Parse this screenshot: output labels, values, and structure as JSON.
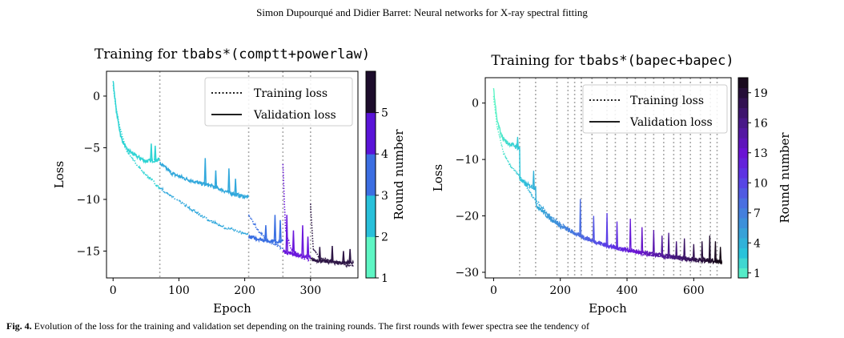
{
  "page_header": "Simon Dupourqué  and Didier Barret: Neural networks for X-ray spectral fitting",
  "caption": {
    "label": "Fig. 4.",
    "text": "Evolution of the loss for the training and validation set depending on the training rounds. The first rounds with fewer spectra see the tendency of"
  },
  "colormap": [
    "#5ef6c4",
    "#2ac3da",
    "#3a98d8",
    "#4a6fe0",
    "#5a3ae6",
    "#6a12d4",
    "#4f1a95",
    "#331252",
    "#120810"
  ],
  "chart_data": [
    {
      "type": "line",
      "title_prefix": "Training for ",
      "title_model": "tbabs*(comptt+powerlaw)",
      "xlabel": "Epoch",
      "ylabel": "Loss",
      "xlim": [
        -10,
        372
      ],
      "ylim": [
        -17.6,
        2.4
      ],
      "xticks": [
        0,
        100,
        200,
        300
      ],
      "yticks": [
        0,
        -5,
        -10,
        -15
      ],
      "ytick_labels": [
        "0",
        "−5",
        "−10",
        "−15"
      ],
      "round_boundaries": [
        71,
        206,
        258,
        300
      ],
      "rounds": [
        {
          "round": 1,
          "color": "#2fd4d4",
          "start": 0,
          "end": 71,
          "train": [
            [
              0,
              1.2
            ],
            [
              4,
              -1
            ],
            [
              10,
              -3
            ],
            [
              20,
              -5.2
            ],
            [
              40,
              -7
            ],
            [
              60,
              -8.2
            ],
            [
              71,
              -8.9
            ]
          ],
          "val": [
            [
              0,
              1.5
            ],
            [
              5,
              -1.5
            ],
            [
              12,
              -4
            ],
            [
              20,
              -5.1
            ],
            [
              35,
              -5.8
            ],
            [
              50,
              -6.3
            ],
            [
              65,
              -6.2
            ],
            [
              71,
              -6.1
            ]
          ],
          "val_spikes": [
            [
              58,
              -4.6
            ],
            [
              64,
              -4.8
            ]
          ]
        },
        {
          "round": 2,
          "color": "#31a8dc",
          "start": 71,
          "end": 206,
          "train": [
            [
              71,
              -8.9
            ],
            [
              100,
              -10.2
            ],
            [
              130,
              -11.4
            ],
            [
              160,
              -12.5
            ],
            [
              190,
              -13.1
            ],
            [
              206,
              -13.4
            ]
          ],
          "val": [
            [
              71,
              -6.5
            ],
            [
              90,
              -7.5
            ],
            [
              110,
              -8.0
            ],
            [
              130,
              -8.4
            ],
            [
              150,
              -8.7
            ],
            [
              170,
              -9.2
            ],
            [
              190,
              -9.6
            ],
            [
              206,
              -9.8
            ]
          ],
          "val_spikes": [
            [
              140,
              -6.0
            ],
            [
              156,
              -7.2
            ],
            [
              176,
              -7.0
            ],
            [
              186,
              -8.0
            ]
          ]
        },
        {
          "round": 3,
          "color": "#3a6fe2",
          "start": 206,
          "end": 258,
          "train": [
            [
              206,
              -11.5
            ],
            [
              220,
              -13.0
            ],
            [
              235,
              -14.0
            ],
            [
              258,
              -14.8
            ]
          ],
          "val": [
            [
              206,
              -13.6
            ],
            [
              220,
              -13.8
            ],
            [
              235,
              -14.0
            ],
            [
              258,
              -14.1
            ]
          ],
          "val_spikes": [
            [
              232,
              -12.5
            ],
            [
              246,
              -11.5
            ],
            [
              254,
              -12.0
            ]
          ]
        },
        {
          "round": 4,
          "color": "#6b18dc",
          "start": 258,
          "end": 300,
          "train": [
            [
              258,
              -6.5
            ],
            [
              262,
              -13.0
            ],
            [
              270,
              -14.8
            ],
            [
              285,
              -15.5
            ],
            [
              300,
              -15.9
            ]
          ],
          "val": [
            [
              258,
              -15.0
            ],
            [
              270,
              -15.2
            ],
            [
              285,
              -15.5
            ],
            [
              300,
              -15.6
            ]
          ],
          "val_spikes": [
            [
              264,
              -11.5
            ],
            [
              274,
              -13.0
            ],
            [
              288,
              -12.5
            ],
            [
              296,
              -13.6
            ]
          ]
        },
        {
          "round": 5,
          "color": "#2e1646",
          "start": 300,
          "end": 365,
          "train": [
            [
              300,
              -10.5
            ],
            [
              304,
              -14.8
            ],
            [
              315,
              -15.7
            ],
            [
              335,
              -16.0
            ],
            [
              350,
              -16.3
            ],
            [
              365,
              -16.5
            ]
          ],
          "val": [
            [
              300,
              -15.8
            ],
            [
              320,
              -16.0
            ],
            [
              340,
              -16.1
            ],
            [
              365,
              -16.1
            ]
          ],
          "val_spikes": [
            [
              314,
              -14.6
            ],
            [
              333,
              -14.5
            ],
            [
              350,
              -15.0
            ],
            [
              360,
              -14.8
            ]
          ]
        }
      ],
      "legend": {
        "placement": "upper-right",
        "entries": [
          "Training loss",
          "Validation loss"
        ]
      },
      "colorbar": {
        "label": "Round number",
        "ticks": [
          1,
          2,
          3,
          4,
          5
        ],
        "range": [
          1,
          6
        ],
        "bands": [
          "#5ef6c4",
          "#29c0da",
          "#3c6ee2",
          "#5a14d8",
          "#1d0d2c"
        ]
      }
    },
    {
      "type": "line",
      "title_prefix": "Training for ",
      "title_model": "tbabs*(bapec+bapec)",
      "xlabel": "Epoch",
      "ylabel": "Loss",
      "xlim": [
        -25,
        712
      ],
      "ylim": [
        -31,
        4.5
      ],
      "xticks": [
        0,
        200,
        400,
        600
      ],
      "yticks": [
        0,
        -10,
        -20,
        -30
      ],
      "ytick_labels": [
        "0",
        "−10",
        "−20",
        "−30"
      ],
      "round_boundaries": [
        78,
        126,
        190,
        223,
        243,
        263,
        295,
        340,
        365,
        400,
        425,
        455,
        480,
        510,
        540,
        560,
        590,
        620,
        650,
        670
      ],
      "train": [
        [
          0,
          1
        ],
        [
          10,
          -4
        ],
        [
          30,
          -9
        ],
        [
          50,
          -11
        ],
        [
          78,
          -13
        ],
        [
          100,
          -15
        ],
        [
          130,
          -17.5
        ],
        [
          160,
          -19.5
        ],
        [
          200,
          -21.5
        ],
        [
          250,
          -23.2
        ],
        [
          300,
          -24.5
        ],
        [
          350,
          -25.5
        ],
        [
          400,
          -26.2
        ],
        [
          450,
          -26.8
        ],
        [
          500,
          -27.2
        ],
        [
          550,
          -27.6
        ],
        [
          600,
          -27.9
        ],
        [
          650,
          -28.1
        ],
        [
          685,
          -28.3
        ]
      ],
      "val": [
        [
          0,
          2.5
        ],
        [
          10,
          -3
        ],
        [
          25,
          -6
        ],
        [
          40,
          -7
        ],
        [
          60,
          -7.5
        ],
        [
          78,
          -8
        ],
        [
          79,
          -13.5
        ],
        [
          100,
          -14.5
        ],
        [
          126,
          -15
        ],
        [
          127,
          -18
        ],
        [
          160,
          -20
        ],
        [
          200,
          -21.8
        ],
        [
          250,
          -23.3
        ],
        [
          300,
          -24.5
        ],
        [
          350,
          -25.4
        ],
        [
          400,
          -26
        ],
        [
          450,
          -26.6
        ],
        [
          500,
          -27
        ],
        [
          550,
          -27.4
        ],
        [
          600,
          -27.7
        ],
        [
          650,
          -27.9
        ],
        [
          685,
          -28
        ]
      ],
      "val_spikes": [
        [
          72,
          -6
        ],
        [
          120,
          -12
        ],
        [
          260,
          -17
        ],
        [
          300,
          -20
        ],
        [
          340,
          -19.5
        ],
        [
          370,
          -21
        ],
        [
          410,
          -20.5
        ],
        [
          445,
          -22
        ],
        [
          480,
          -22.5
        ],
        [
          505,
          -23.5
        ],
        [
          525,
          -23
        ],
        [
          548,
          -24.5
        ],
        [
          572,
          -24
        ],
        [
          600,
          -25
        ],
        [
          625,
          -24.5
        ],
        [
          648,
          -23.5
        ],
        [
          665,
          -24.5
        ],
        [
          680,
          -25.5
        ]
      ],
      "legend": {
        "placement": "upper-right",
        "entries": [
          "Training loss",
          "Validation loss"
        ]
      },
      "colorbar": {
        "label": "Round number",
        "ticks": [
          1,
          4,
          7,
          10,
          13,
          16,
          19
        ],
        "range": [
          1,
          21
        ]
      }
    }
  ]
}
